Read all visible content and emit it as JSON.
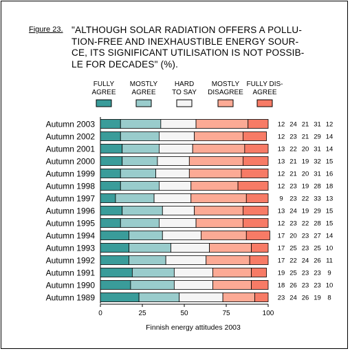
{
  "figure_label": "Figure 23.",
  "title": "\"ALTHOUGH SOLAR RADIATION OFFERS A POLLU-TION-FREE AND INEXHAUSTIBLE ENERGY SOURCE, ITS SIGNIFICANT UTILISATION IS NOT POSSIBLE FOR DECADES\" (%).",
  "title_lines": [
    "\"ALTHOUGH SOLAR RADIATION OFFERS A POLLU-",
    "TION-FREE AND INEXHAUSTIBLE ENERGY SOUR-",
    "CE, ITS SIGNIFICANT UTILISATION IS NOT POSSIB-",
    "LE FOR DECADES\" (%)."
  ],
  "chart_data": {
    "type": "bar",
    "orientation": "horizontal",
    "stacked": true,
    "categories": [
      "Autumn 2003",
      "Autumn 2002",
      "Autumn 2001",
      "Autumn 2000",
      "Autumn 1999",
      "Autumn 1998",
      "Autumn 1997",
      "Autumn 1996",
      "Autumn 1995",
      "Autumn 1994",
      "Autumn 1993",
      "Autumn 1992",
      "Autumn 1991",
      "Autumn 1990",
      "Autumn 1989"
    ],
    "series": [
      {
        "name": "FULLY AGREE",
        "legend_lines": [
          "FULLY",
          "AGREE"
        ],
        "color": "#3a9c9a",
        "values": [
          12,
          12,
          13,
          13,
          12,
          12,
          9,
          13,
          12,
          17,
          17,
          17,
          19,
          18,
          23
        ]
      },
      {
        "name": "MOSTLY AGREE",
        "legend_lines": [
          "MOSTLY",
          "AGREE"
        ],
        "color": "#99cccc",
        "values": [
          24,
          23,
          22,
          21,
          21,
          23,
          23,
          24,
          23,
          20,
          25,
          22,
          25,
          26,
          24
        ]
      },
      {
        "name": "HARD TO SAY",
        "legend_lines": [
          "HARD",
          "TO SAY"
        ],
        "color": "#f5f5f5",
        "values": [
          21,
          21,
          20,
          19,
          20,
          19,
          22,
          19,
          22,
          23,
          23,
          24,
          23,
          23,
          26
        ]
      },
      {
        "name": "MOSTLY DISAGREE",
        "legend_lines": [
          "MOSTLY",
          "DISAGREE"
        ],
        "color": "#fcaa95",
        "values": [
          31,
          29,
          31,
          32,
          31,
          28,
          33,
          29,
          28,
          27,
          25,
          26,
          23,
          23,
          19
        ]
      },
      {
        "name": "FULLY DISAGREE",
        "legend_lines": [
          "FULLY DIS-",
          "AGREE"
        ],
        "color": "#f77b66",
        "values": [
          12,
          14,
          14,
          15,
          16,
          18,
          13,
          15,
          15,
          14,
          10,
          11,
          9,
          10,
          8
        ]
      }
    ],
    "xlim": [
      0,
      100
    ],
    "xticks": [
      0,
      25,
      50,
      75,
      100
    ],
    "xlabel": "Finnish energy attitudes 2003",
    "legend_position": "top"
  }
}
